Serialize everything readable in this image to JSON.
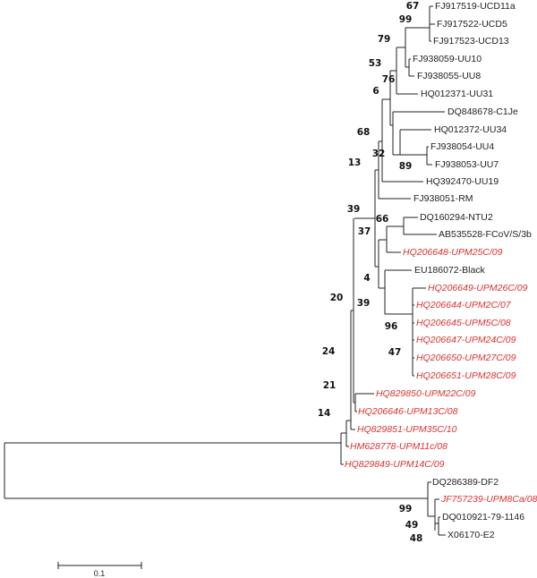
{
  "colors": {
    "reference_taxa": "#222222",
    "study_isolates": "#d8322e"
  },
  "leaves": [
    "FJ917519-UCD11a",
    "FJ917522-UCD5",
    "FJ917523-UCD13",
    "FJ938059-UU10",
    "FJ938055-UU8",
    "HQ012371-UU31",
    "DQ848678-C1Je",
    "HQ012372-UU34",
    "FJ938054-UU4",
    "FJ938053-UU7",
    "HQ392470-UU19",
    "FJ938051-RM",
    "DQ160294-NTU2",
    "AB535528-FCoV/S/3b",
    "HQ206648-UPM25C/09",
    "EU186072-Black",
    "HQ206649-UPM26C/09",
    "HQ206644-UPM2C/07",
    "HQ206645-UPM5C/08",
    "HQ206647-UPM24C/09",
    "HQ206650-UPM27C/09",
    "HQ206651-UPM28C/09",
    "HQ829850-UPM22C/09",
    "HQ206646-UPM13C/08",
    "HQ829851-UPM35C/10",
    "HM628778-UPM11c/08",
    "HQ829849-UPM14C/09",
    "DQ286389-DF2",
    "JF757239-UPM8Ca/08",
    "DQ010921-79-1146",
    "X06170-E2"
  ],
  "bootstrap": [
    "67",
    "99",
    "79",
    "53",
    "76",
    "6",
    "68",
    "32",
    "13",
    "89",
    "39",
    "66",
    "37",
    "4",
    "20",
    "39",
    "96",
    "24",
    "47",
    "21",
    "14",
    "99",
    "49",
    "48"
  ],
  "scale_bar": {
    "label": "0.1"
  }
}
